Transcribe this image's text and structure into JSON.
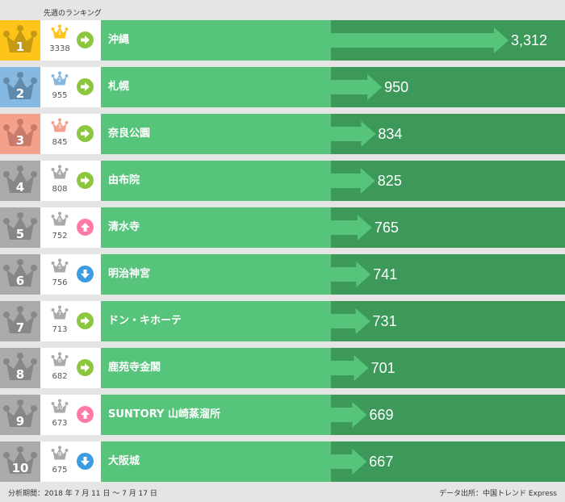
{
  "header": {
    "label": "先週のランキング"
  },
  "colors": {
    "gold": "#ffc41a",
    "blue": "#86b9e1",
    "salmon": "#f5a08b",
    "gray": "#aaaaaa",
    "name_bg": "#56c47b",
    "bar_bg": "#3c995a",
    "up": "#ff7aa9",
    "down": "#3d9ce0",
    "same": "#8cc63f"
  },
  "max_value": 3312,
  "rows": [
    {
      "rank": "1",
      "prev_rank": "1",
      "prev_value": "3338",
      "movement": "same",
      "name": "沖縄",
      "value": 3312,
      "value_label": "3,312",
      "color": "gold"
    },
    {
      "rank": "2",
      "prev_rank": "2",
      "prev_value": "955",
      "movement": "same",
      "name": "札幌",
      "value": 950,
      "value_label": "950",
      "color": "blue"
    },
    {
      "rank": "3",
      "prev_rank": "3",
      "prev_value": "845",
      "movement": "same",
      "name": "奈良公園",
      "value": 834,
      "value_label": "834",
      "color": "salmon"
    },
    {
      "rank": "4",
      "prev_rank": "4",
      "prev_value": "808",
      "movement": "same",
      "name": "由布院",
      "value": 825,
      "value_label": "825",
      "color": "gray"
    },
    {
      "rank": "5",
      "prev_rank": "6",
      "prev_value": "752",
      "movement": "up",
      "name": "清水寺",
      "value": 765,
      "value_label": "765",
      "color": "gray"
    },
    {
      "rank": "6",
      "prev_rank": "5",
      "prev_value": "756",
      "movement": "down",
      "name": "明治神宮",
      "value": 741,
      "value_label": "741",
      "color": "gray"
    },
    {
      "rank": "7",
      "prev_rank": "7",
      "prev_value": "713",
      "movement": "same",
      "name": "ドン・キホーテ",
      "value": 731,
      "value_label": "731",
      "color": "gray"
    },
    {
      "rank": "8",
      "prev_rank": "8",
      "prev_value": "682",
      "movement": "same",
      "name": "鹿苑寺金閣",
      "value": 701,
      "value_label": "701",
      "color": "gray"
    },
    {
      "rank": "9",
      "prev_rank": "10",
      "prev_value": "673",
      "movement": "up",
      "name": "SUNTORY 山崎蒸溜所",
      "value": 669,
      "value_label": "669",
      "color": "gray"
    },
    {
      "rank": "10",
      "prev_rank": "9",
      "prev_value": "675",
      "movement": "down",
      "name": "大阪城",
      "value": 667,
      "value_label": "667",
      "color": "gray"
    }
  ],
  "footer": {
    "period": "分析期間：2018 年 7 月 11 日 〜 7 月 17 日",
    "source": "データ出所：中国トレンド Express"
  }
}
